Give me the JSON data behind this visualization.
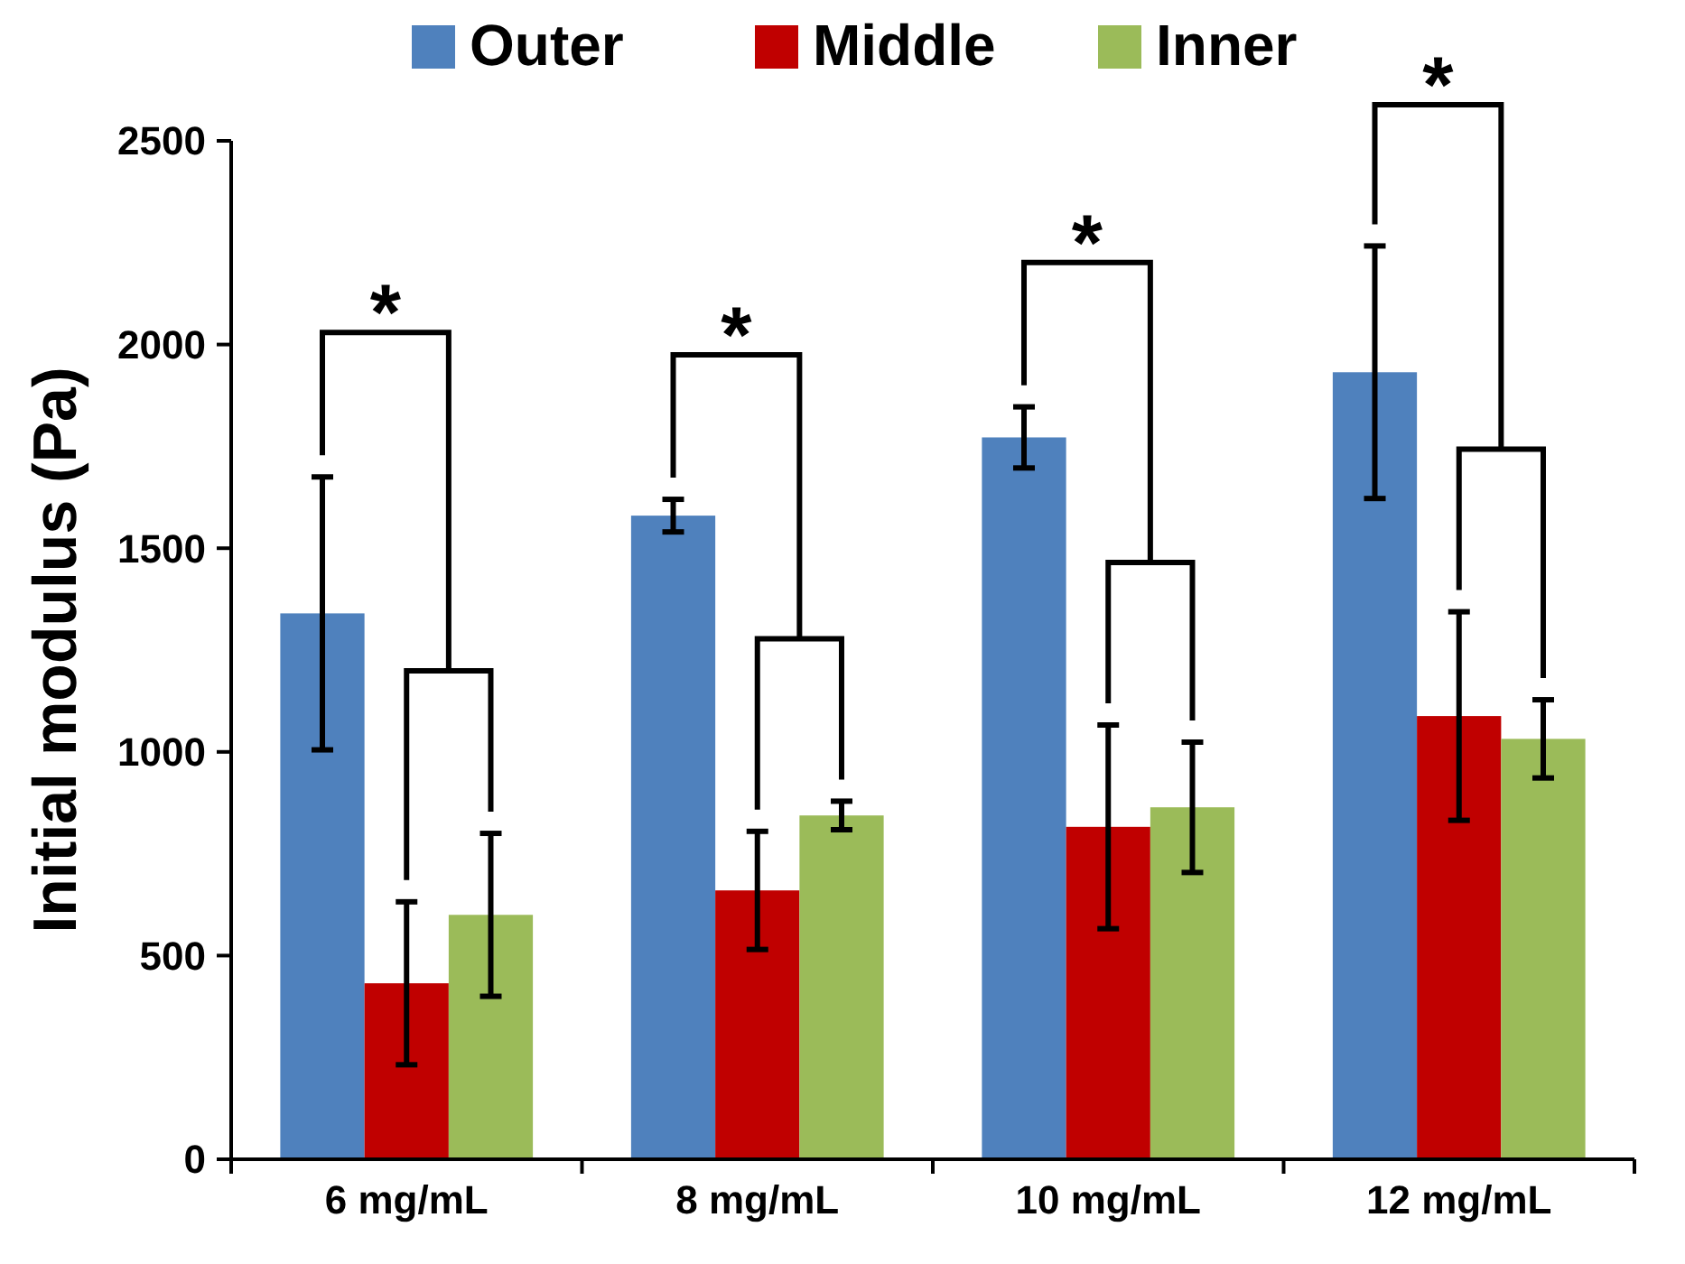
{
  "chart_data": {
    "type": "bar",
    "ylabel": "Initial modulus (Pa)",
    "categories": [
      "6 mg/mL",
      "8 mg/mL",
      "10 mg/mL",
      "12 mg/mL"
    ],
    "series": [
      {
        "name": "Outer",
        "color": "#4f81bd",
        "values": [
          1340,
          1580,
          1772,
          1932
        ],
        "errors": [
          335,
          40,
          75,
          310
        ]
      },
      {
        "name": "Middle",
        "color": "#c00000",
        "values": [
          432,
          660,
          816,
          1088
        ],
        "errors": [
          200,
          145,
          250,
          256
        ]
      },
      {
        "name": "Inner",
        "color": "#9bbb59",
        "values": [
          600,
          844,
          864,
          1032
        ],
        "errors": [
          200,
          35,
          160,
          96
        ]
      }
    ],
    "ylim": [
      0,
      2500
    ],
    "yticks": [
      0,
      500,
      1000,
      1500,
      2000,
      2500
    ],
    "grid": false,
    "legend": "top",
    "annotations": [
      "*",
      "*",
      "*",
      "*"
    ]
  }
}
